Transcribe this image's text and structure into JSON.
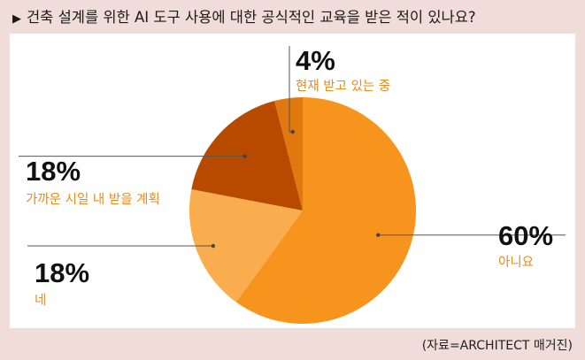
{
  "title": "건축 설계를 위한 AI 도구 사용에 대한 공식적인 교육을 받은 적이 있나요?",
  "title_marker": "▶",
  "source": "(자료=ARCHITECT 매거진)",
  "colors": {
    "background": "#f0dcd8",
    "panel": "#ffffff",
    "label": "#e98b1d",
    "leader": "#555555"
  },
  "chart_data": {
    "type": "pie",
    "title": "건축 설계를 위한 AI 도구 사용에 대한 공식적인 교육을 받은 적이 있나요?",
    "slices": [
      {
        "label": "아니요",
        "value": 60,
        "display": "60%",
        "color": "#f7941d"
      },
      {
        "label": "네",
        "value": 18,
        "display": "18%",
        "color": "#f9ad4e"
      },
      {
        "label": "가까운 시일 내 받을 계획",
        "value": 18,
        "display": "18%",
        "color": "#b84a00"
      },
      {
        "label": "현재 받고 있는 중",
        "value": 4,
        "display": "4%",
        "color": "#e0780f"
      }
    ]
  }
}
